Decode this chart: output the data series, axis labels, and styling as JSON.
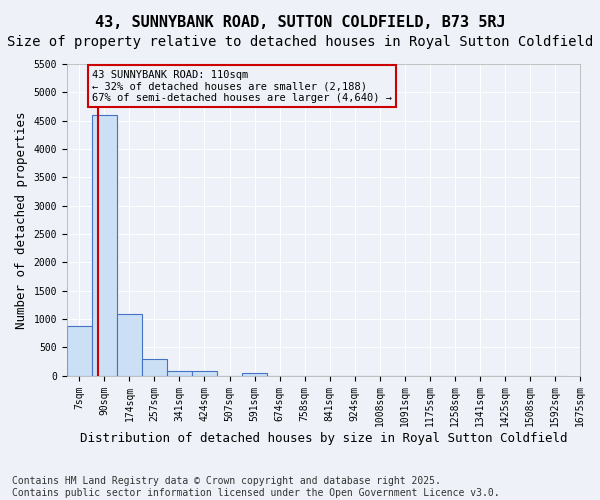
{
  "title": "43, SUNNYBANK ROAD, SUTTON COLDFIELD, B73 5RJ",
  "subtitle": "Size of property relative to detached houses in Royal Sutton Coldfield",
  "xlabel": "Distribution of detached houses by size in Royal Sutton Coldfield",
  "ylabel": "Number of detached properties",
  "footer": "Contains HM Land Registry data © Crown copyright and database right 2025.\nContains public sector information licensed under the Open Government Licence v3.0.",
  "bins": [
    "7sqm",
    "90sqm",
    "174sqm",
    "257sqm",
    "341sqm",
    "424sqm",
    "507sqm",
    "591sqm",
    "674sqm",
    "758sqm",
    "841sqm",
    "924sqm",
    "1008sqm",
    "1091sqm",
    "1175sqm",
    "1258sqm",
    "1341sqm",
    "1425sqm",
    "1508sqm",
    "1592sqm"
  ],
  "values": [
    880,
    4600,
    1080,
    290,
    80,
    80,
    0,
    50,
    0,
    0,
    0,
    0,
    0,
    0,
    0,
    0,
    0,
    0,
    0,
    0
  ],
  "bar_color": "#cce0f5",
  "bar_edge_color": "#4472c4",
  "bg_color": "#eef2f8",
  "grid_color": "#ffffff",
  "pct_smaller": 32,
  "pct_larger": 67,
  "n_smaller": 2188,
  "n_larger": 4640,
  "annotation_box_color": "#cc0000",
  "vline_color": "#cc0000",
  "ylim": [
    0,
    5500
  ],
  "yticks": [
    0,
    500,
    1000,
    1500,
    2000,
    2500,
    3000,
    3500,
    4000,
    4500,
    5000,
    5500
  ],
  "title_fontsize": 11,
  "subtitle_fontsize": 10,
  "xlabel_fontsize": 9,
  "ylabel_fontsize": 9,
  "tick_fontsize": 7,
  "footer_fontsize": 7,
  "last_xtick_label": "1675sqm"
}
